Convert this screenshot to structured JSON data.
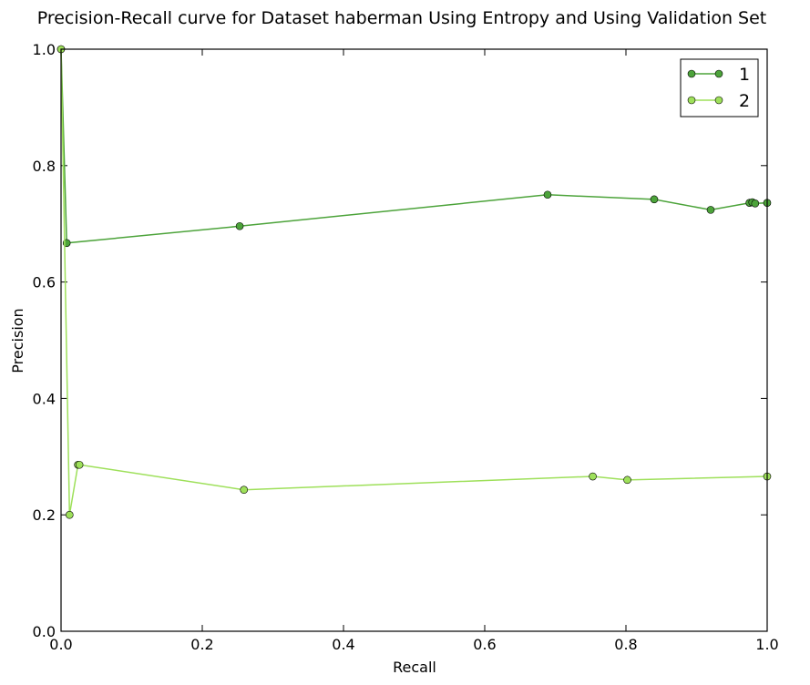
{
  "chart_data": {
    "type": "line",
    "title": "Precision-Recall curve for Dataset haberman Using Entropy and Using Validation Set",
    "xlabel": "Recall",
    "ylabel": "Precision",
    "xlim": [
      0.0,
      1.0
    ],
    "ylim": [
      0.0,
      1.0
    ],
    "xticks": [
      0.0,
      0.2,
      0.4,
      0.6,
      0.8,
      1.0
    ],
    "yticks": [
      0.0,
      0.2,
      0.4,
      0.6,
      0.8,
      1.0
    ],
    "xtick_labels": [
      "0.0",
      "0.2",
      "0.4",
      "0.6",
      "0.8",
      "1.0"
    ],
    "ytick_labels": [
      "0.0",
      "0.2",
      "0.4",
      "0.6",
      "0.8",
      "1.0"
    ],
    "grid": false,
    "legend_position": "top-right",
    "series": [
      {
        "name": "1",
        "color": "#4ca33a",
        "marker_color": "#4ca33a",
        "x": [
          0.0,
          0.008,
          0.253,
          0.689,
          0.84,
          0.92,
          0.975,
          0.979,
          0.983,
          1.0
        ],
        "y": [
          1.0,
          0.667,
          0.696,
          0.75,
          0.742,
          0.724,
          0.736,
          0.737,
          0.735,
          0.736
        ]
      },
      {
        "name": "2",
        "color": "#9ee05a",
        "marker_color": "#9ee05a",
        "x": [
          0.0,
          0.012,
          0.024,
          0.026,
          0.259,
          0.753,
          0.802,
          1.0
        ],
        "y": [
          1.0,
          0.2,
          0.286,
          0.286,
          0.243,
          0.266,
          0.26,
          0.266
        ]
      }
    ]
  }
}
